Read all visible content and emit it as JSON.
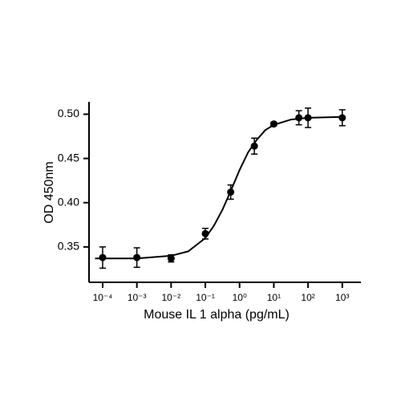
{
  "chart_data": {
    "type": "scatter",
    "x_label": "Mouse IL 1 alpha (pg/mL)",
    "y_label": "OD 450nm",
    "x_scale": "log",
    "xlim": [
      4e-05,
      3500
    ],
    "ylim": [
      0.31,
      0.514
    ],
    "xticks": [
      {
        "value": 0.0001,
        "label": "10⁻⁴"
      },
      {
        "value": 0.001,
        "label": "10⁻³"
      },
      {
        "value": 0.01,
        "label": "10⁻²"
      },
      {
        "value": 0.1,
        "label": "10⁻¹"
      },
      {
        "value": 1,
        "label": "10⁰"
      },
      {
        "value": 10,
        "label": "10¹"
      },
      {
        "value": 100,
        "label": "10²"
      },
      {
        "value": 1000,
        "label": "10³"
      }
    ],
    "yticks": [
      {
        "value": 0.35,
        "label": "0.35"
      },
      {
        "value": 0.4,
        "label": "0.40"
      },
      {
        "value": 0.45,
        "label": "0.45"
      },
      {
        "value": 0.5,
        "label": "0.50"
      }
    ],
    "series": [
      {
        "color": "#000000",
        "style": "points",
        "x": [
          0.0001,
          0.001,
          0.01,
          0.1,
          0.55,
          2.7,
          10,
          54,
          100,
          1000
        ],
        "values": [
          0.338,
          0.338,
          0.337,
          0.365,
          0.412,
          0.464,
          0.489,
          0.496,
          0.496,
          0.496
        ],
        "errors": [
          0.012,
          0.011,
          0.004,
          0.006,
          0.008,
          0.009,
          0.002,
          0.008,
          0.011,
          0.009
        ]
      },
      {
        "color": "#000000",
        "style": "line",
        "x": [
          6e-05,
          0.001,
          0.01,
          0.0316,
          0.1,
          0.178,
          0.316,
          0.562,
          1,
          1.78,
          3.16,
          5.62,
          10,
          31.6,
          100,
          1000
        ],
        "values": [
          0.337,
          0.337,
          0.34,
          0.345,
          0.36,
          0.374,
          0.392,
          0.414,
          0.437,
          0.457,
          0.471,
          0.482,
          0.488,
          0.494,
          0.496,
          0.497
        ]
      }
    ]
  }
}
